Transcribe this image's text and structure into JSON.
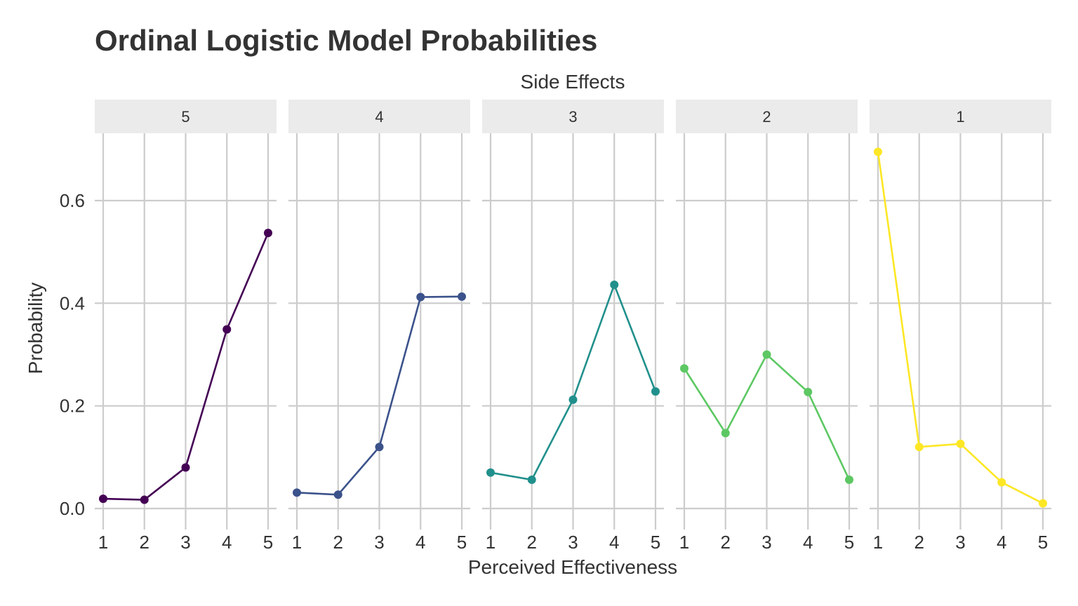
{
  "chart_data": {
    "type": "line",
    "title": "Ordinal Logistic Model Probabilities",
    "facet_title": "Side Effects",
    "xlabel": "Perceived Effectiveness",
    "ylabel": "Probability",
    "x": [
      1,
      2,
      3,
      4,
      5
    ],
    "x_tick_labels": [
      "1",
      "2",
      "3",
      "4",
      "5"
    ],
    "ylim": [
      0,
      0.72
    ],
    "y_ticks": [
      0.0,
      0.2,
      0.4,
      0.6
    ],
    "y_tick_labels": [
      "0.0",
      "0.2",
      "0.4",
      "0.6"
    ],
    "grid": true,
    "legend": "none",
    "panels": [
      {
        "label": "5",
        "color": "#440154",
        "values": [
          0.019,
          0.017,
          0.08,
          0.349,
          0.537
        ]
      },
      {
        "label": "4",
        "color": "#3B528B",
        "values": [
          0.031,
          0.027,
          0.12,
          0.412,
          0.413
        ]
      },
      {
        "label": "3",
        "color": "#21908C",
        "values": [
          0.07,
          0.056,
          0.212,
          0.436,
          0.228
        ]
      },
      {
        "label": "2",
        "color": "#5DC863",
        "values": [
          0.273,
          0.147,
          0.3,
          0.227,
          0.056
        ]
      },
      {
        "label": "1",
        "color": "#FDE725",
        "values": [
          0.695,
          0.12,
          0.126,
          0.051,
          0.01
        ]
      }
    ]
  }
}
